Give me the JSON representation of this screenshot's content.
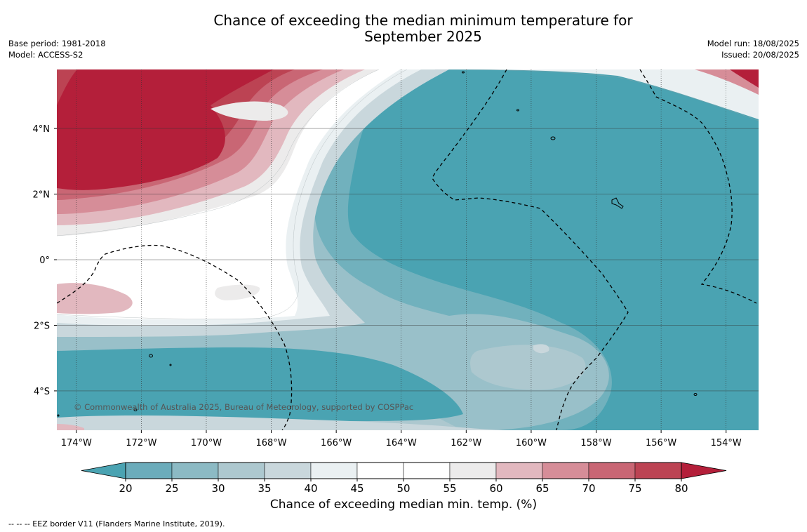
{
  "header": {
    "title_line1": "Chance of exceeding the median minimum temperature for",
    "title_line2": "September 2025",
    "base_period": "Base period: 1981-2018",
    "model": "Model: ACCESS-S2",
    "model_run": "Model run: 18/08/2025",
    "issued": "Issued: 20/08/2025"
  },
  "map": {
    "lat_ticks": [
      {
        "value": 4,
        "label": "4°N"
      },
      {
        "value": 2,
        "label": "2°N"
      },
      {
        "value": 0,
        "label": "0°"
      },
      {
        "value": -2,
        "label": "2°S"
      },
      {
        "value": -4,
        "label": "4°S"
      }
    ],
    "lon_ticks": [
      {
        "value": -174,
        "label": "174°W"
      },
      {
        "value": -172,
        "label": "172°W"
      },
      {
        "value": -170,
        "label": "170°W"
      },
      {
        "value": -168,
        "label": "168°W"
      },
      {
        "value": -166,
        "label": "166°W"
      },
      {
        "value": -164,
        "label": "164°W"
      },
      {
        "value": -162,
        "label": "162°W"
      },
      {
        "value": -160,
        "label": "160°W"
      },
      {
        "value": -158,
        "label": "158°W"
      },
      {
        "value": -156,
        "label": "156°W"
      },
      {
        "value": -154,
        "label": "154°W"
      }
    ],
    "lon_range": [
      -174.6,
      -153.0
    ],
    "lat_range": [
      -5.2,
      5.8
    ],
    "copyright": "© Commonwealth of Australia 2025, Bureau of Meteorology, supported by COSPPac"
  },
  "colorbar": {
    "label": "Chance of exceeding median min. temp. (%)",
    "ticks": [
      "20",
      "25",
      "30",
      "35",
      "40",
      "45",
      "50",
      "55",
      "60",
      "65",
      "70",
      "75",
      "80"
    ],
    "colors": [
      "#4aa3b2",
      "#6bacbb",
      "#8cbac4",
      "#adc8cf",
      "#c9d7dc",
      "#eaf0f2",
      "#ffffff",
      "#ffffff",
      "#ecebeb",
      "#e2b8bf",
      "#d68d98",
      "#c96674",
      "#bc4353",
      "#b41f3a"
    ]
  },
  "footnote": "--  --  -- EEZ border V11 (Flanders Marine Institute, 2019)."
}
